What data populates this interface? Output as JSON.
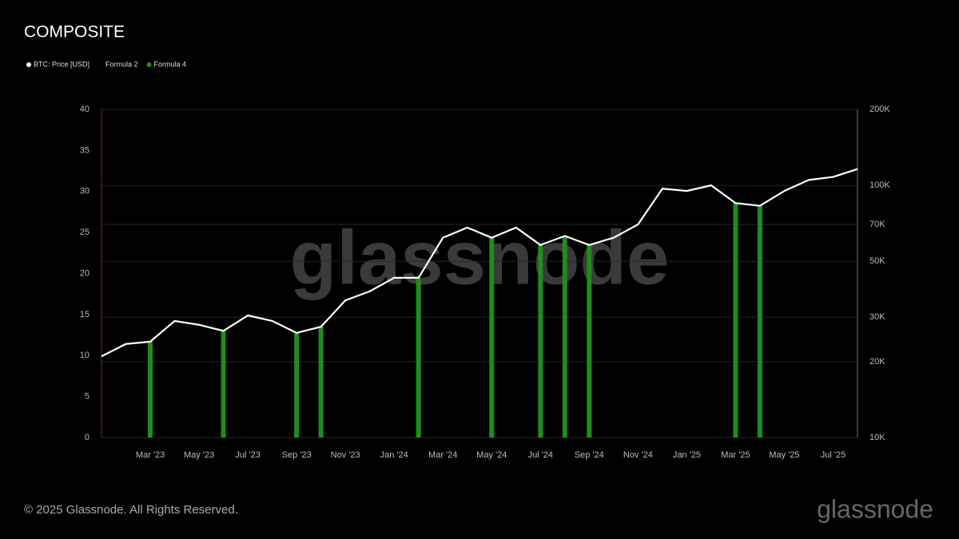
{
  "chart_data": {
    "type": "line",
    "title": "COMPOSITE",
    "watermark": "glassnode",
    "footer": "© 2025 Glassnode. All Rights Reserved.",
    "logo": "glassnode",
    "x": [
      "2023-01",
      "2023-02",
      "2023-03",
      "2023-04",
      "2023-05",
      "2023-06",
      "2023-07",
      "2023-08",
      "2023-09",
      "2023-10",
      "2023-11",
      "2023-12",
      "2024-01",
      "2024-02",
      "2024-03",
      "2024-04",
      "2024-05",
      "2024-06",
      "2024-07",
      "2024-08",
      "2024-09",
      "2024-10",
      "2024-11",
      "2024-12",
      "2025-01",
      "2025-02",
      "2025-03",
      "2025-04",
      "2025-05",
      "2025-06",
      "2025-07",
      "2025-08"
    ],
    "xlim": [
      "2023-01",
      "2025-08"
    ],
    "xticks": [
      {
        "value": "2023-03",
        "label": "Mar '23"
      },
      {
        "value": "2023-05",
        "label": "May '23"
      },
      {
        "value": "2023-07",
        "label": "Jul '23"
      },
      {
        "value": "2023-09",
        "label": "Sep '23"
      },
      {
        "value": "2023-11",
        "label": "Nov '23"
      },
      {
        "value": "2024-01",
        "label": "Jan '24"
      },
      {
        "value": "2024-03",
        "label": "Mar '24"
      },
      {
        "value": "2024-05",
        "label": "May '24"
      },
      {
        "value": "2024-07",
        "label": "Jul '24"
      },
      {
        "value": "2024-09",
        "label": "Sep '24"
      },
      {
        "value": "2024-11",
        "label": "Nov '24"
      },
      {
        "value": "2025-01",
        "label": "Jan '25"
      },
      {
        "value": "2025-03",
        "label": "Mar '25"
      },
      {
        "value": "2025-05",
        "label": "May '25"
      },
      {
        "value": "2025-07",
        "label": "Jul '25"
      }
    ],
    "ylim": [
      0,
      40
    ],
    "yticks": [
      0,
      5,
      10,
      15,
      20,
      25,
      30,
      35,
      40
    ],
    "y2lim": [
      10000,
      200000
    ],
    "y2_scale": "log",
    "y2ticks": [
      {
        "value": 10000,
        "label": "10K"
      },
      {
        "value": 20000,
        "label": "20K"
      },
      {
        "value": 30000,
        "label": "30K"
      },
      {
        "value": 50000,
        "label": "50K"
      },
      {
        "value": 70000,
        "label": "70K"
      },
      {
        "value": 100000,
        "label": "100K"
      },
      {
        "value": 200000,
        "label": "200K"
      }
    ],
    "grid": true,
    "series": [
      {
        "name": "BTC: Price [USD]",
        "color": "#ffffff",
        "axis": "y2",
        "values": [
          21000,
          23500,
          24000,
          29000,
          28000,
          26500,
          30500,
          29000,
          26000,
          27500,
          35000,
          38000,
          43000,
          43000,
          62000,
          68000,
          62000,
          68000,
          58000,
          63000,
          58000,
          62000,
          70000,
          97000,
          95000,
          100000,
          85000,
          83000,
          95000,
          105000,
          108000,
          116000
        ]
      },
      {
        "name": "Formula 2",
        "color": "#000000",
        "axis": "y2",
        "values": [
          null,
          null,
          null,
          null,
          null,
          null,
          null,
          null,
          null,
          null,
          null,
          null,
          null,
          null,
          null,
          null,
          null,
          null,
          null,
          null,
          null,
          null,
          null,
          null,
          null,
          null,
          null,
          null,
          null,
          null,
          null,
          null
        ]
      },
      {
        "name": "Formula 4",
        "color": "#1e8c1e",
        "axis": "y2",
        "values": [
          null,
          null,
          24000,
          null,
          null,
          26500,
          null,
          null,
          26000,
          27500,
          null,
          null,
          null,
          43000,
          null,
          null,
          62000,
          null,
          58000,
          63000,
          58000,
          null,
          null,
          null,
          null,
          null,
          85000,
          83000,
          null,
          null,
          null,
          null
        ]
      }
    ]
  }
}
